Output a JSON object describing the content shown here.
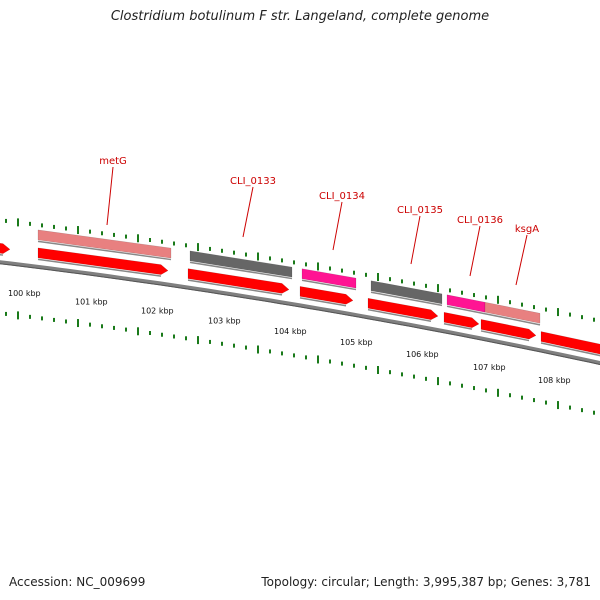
{
  "title": "Clostridium botulinum F str. Langeland, complete genome",
  "footer": {
    "accession": "Accession: NC_009699",
    "stats": "Topology: circular; Length: 3,995,387 bp; Genes: 3,781"
  },
  "colors": {
    "cds_red": "#ff0000",
    "gene_salmon": "#e88080",
    "hypothetical_gray": "#666666",
    "magenta": "#ff1493",
    "tick_green": "#1a7a1a",
    "backbone_gray": "#808080",
    "label_red": "#cc0000"
  },
  "kbp_labels": [
    "100 kbp",
    "101 kbp",
    "102 kbp",
    "103 kbp",
    "104 kbp",
    "105 kbp",
    "106 kbp",
    "107 kbp",
    "108 kbp"
  ],
  "gene_labels": [
    "metG",
    "CLI_0133",
    "CLI_0134",
    "CLI_0135",
    "CLI_0136",
    "ksgA"
  ]
}
